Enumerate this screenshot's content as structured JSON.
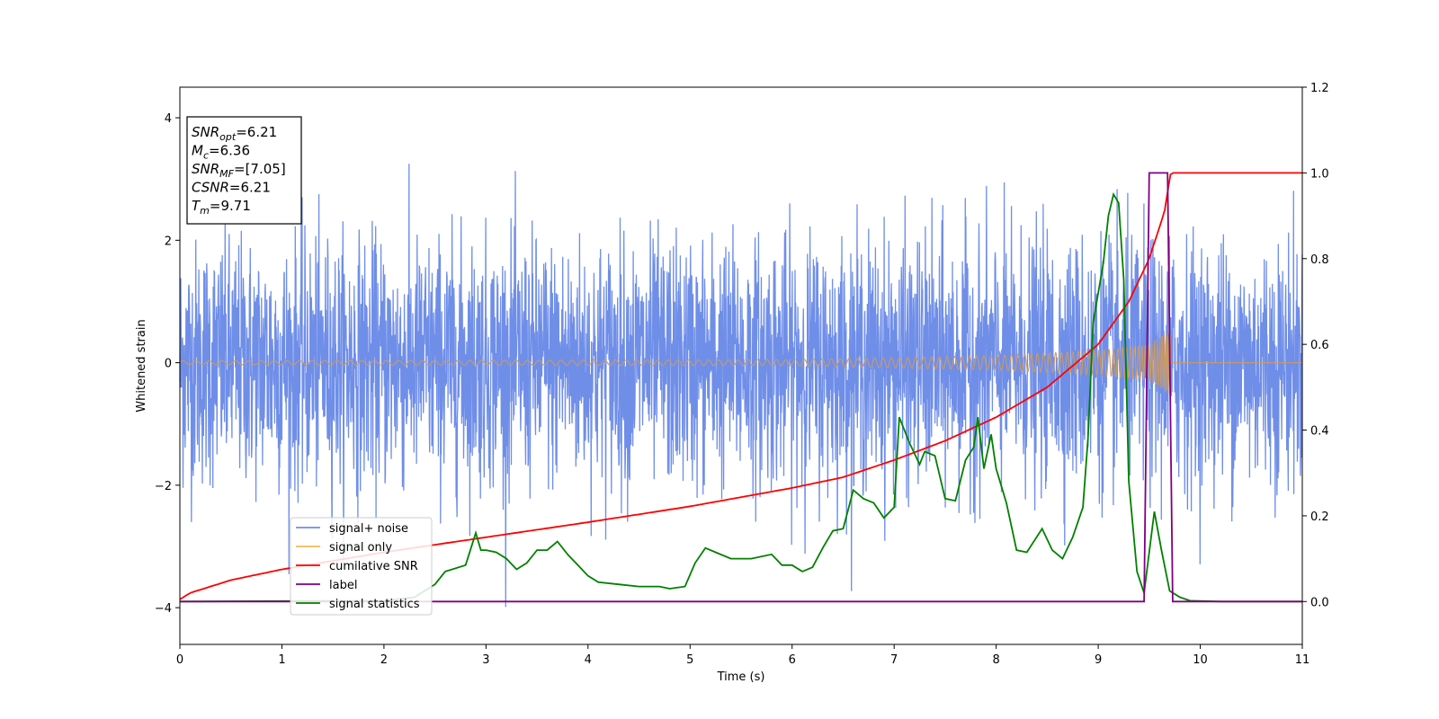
{
  "chart_data": {
    "type": "line",
    "xlabel": "Time (s)",
    "ylabel": "Whitened strain",
    "x_ticks": [
      "0",
      "1",
      "2",
      "3",
      "4",
      "5",
      "6",
      "7",
      "8",
      "9",
      "10",
      "11"
    ],
    "y_ticks": [
      "−4",
      "−2",
      "0",
      "2",
      "4"
    ],
    "y2_ticks": [
      "0.0",
      "0.2",
      "0.4",
      "0.6",
      "0.8",
      "1.0",
      "1.2"
    ],
    "xlim": [
      0,
      11
    ],
    "ylim": [
      -4.6,
      4.5
    ],
    "y2lim": [
      -0.1,
      1.2
    ],
    "grid": false,
    "legend_position": "lower-left",
    "colors": {
      "signal_noise": "#6f8ee8",
      "signal_only": "#f5b955",
      "cumulative_snr": "#ff0000",
      "label": "#800080",
      "signal_statistics": "#008000"
    },
    "series": [
      {
        "name": "signal+ noise",
        "axis": "left",
        "envelope_note": "dense noise band",
        "typical_amplitude": 1.6,
        "max": 3.55,
        "min": -4.15
      },
      {
        "name": "signal only",
        "axis": "left",
        "amplitude_at": [
          [
            0,
            0.03
          ],
          [
            6,
            0.05
          ],
          [
            8,
            0.12
          ],
          [
            9,
            0.2
          ],
          [
            9.5,
            0.3
          ],
          [
            9.71,
            0.55
          ]
        ],
        "end_time": 9.71
      },
      {
        "name": "cumilative SNR",
        "axis": "right",
        "x": [
          0,
          0.1,
          0.5,
          1,
          2,
          3,
          4,
          5,
          6,
          6.5,
          7,
          7.5,
          8,
          8.5,
          9,
          9.3,
          9.5,
          9.65,
          9.71,
          11
        ],
        "values": [
          0.005,
          0.02,
          0.05,
          0.075,
          0.115,
          0.15,
          0.185,
          0.222,
          0.265,
          0.29,
          0.33,
          0.375,
          0.43,
          0.5,
          0.6,
          0.7,
          0.8,
          0.91,
          1.0,
          1.0
        ]
      },
      {
        "name": "label",
        "axis": "right",
        "x": [
          0,
          9.45,
          9.5,
          9.68,
          9.73,
          11
        ],
        "values": [
          0,
          0,
          1.0,
          1.0,
          0,
          0
        ]
      },
      {
        "name": "signal statistics",
        "axis": "right",
        "x": [
          0,
          1,
          2,
          2.3,
          2.5,
          2.6,
          2.8,
          2.9,
          2.95,
          3.0,
          3.1,
          3.2,
          3.3,
          3.4,
          3.5,
          3.6,
          3.7,
          3.8,
          3.9,
          4.0,
          4.1,
          4.3,
          4.5,
          4.7,
          4.8,
          4.95,
          5.05,
          5.15,
          5.25,
          5.4,
          5.6,
          5.8,
          5.9,
          6.0,
          6.1,
          6.2,
          6.3,
          6.4,
          6.5,
          6.6,
          6.7,
          6.8,
          6.9,
          7.0,
          7.05,
          7.15,
          7.25,
          7.3,
          7.4,
          7.5,
          7.6,
          7.7,
          7.78,
          7.82,
          7.88,
          7.95,
          8.0,
          8.1,
          8.2,
          8.3,
          8.45,
          8.55,
          8.65,
          8.75,
          8.85,
          8.9,
          8.95,
          9.0,
          9.05,
          9.1,
          9.15,
          9.2,
          9.25,
          9.3,
          9.38,
          9.45,
          9.55,
          9.62,
          9.7,
          9.8,
          9.9,
          10.2,
          11
        ],
        "values": [
          0.0,
          0.001,
          0.002,
          0.01,
          0.04,
          0.07,
          0.085,
          0.16,
          0.12,
          0.12,
          0.115,
          0.1,
          0.075,
          0.09,
          0.12,
          0.12,
          0.14,
          0.11,
          0.085,
          0.06,
          0.045,
          0.04,
          0.035,
          0.035,
          0.03,
          0.035,
          0.09,
          0.125,
          0.115,
          0.1,
          0.1,
          0.11,
          0.085,
          0.085,
          0.07,
          0.08,
          0.125,
          0.165,
          0.17,
          0.26,
          0.24,
          0.23,
          0.195,
          0.22,
          0.43,
          0.37,
          0.32,
          0.35,
          0.34,
          0.24,
          0.235,
          0.33,
          0.36,
          0.43,
          0.31,
          0.39,
          0.31,
          0.23,
          0.12,
          0.115,
          0.17,
          0.12,
          0.1,
          0.15,
          0.22,
          0.38,
          0.65,
          0.72,
          0.79,
          0.9,
          0.95,
          0.93,
          0.75,
          0.28,
          0.07,
          0.02,
          0.21,
          0.12,
          0.025,
          0.01,
          0.002,
          0.0,
          0.0
        ]
      }
    ],
    "annotation_box": {
      "lines": [
        {
          "base": "SNR",
          "sub": "opt",
          "value": "=6.21"
        },
        {
          "base": "M",
          "sub": "c",
          "value": "=6.36"
        },
        {
          "base": "SNR",
          "sub": "MF",
          "value": "=[7.05]"
        },
        {
          "base": "CSNR",
          "sub": "",
          "value": "=6.21"
        },
        {
          "base": "T",
          "sub": "m",
          "value": "=9.71"
        }
      ]
    }
  }
}
